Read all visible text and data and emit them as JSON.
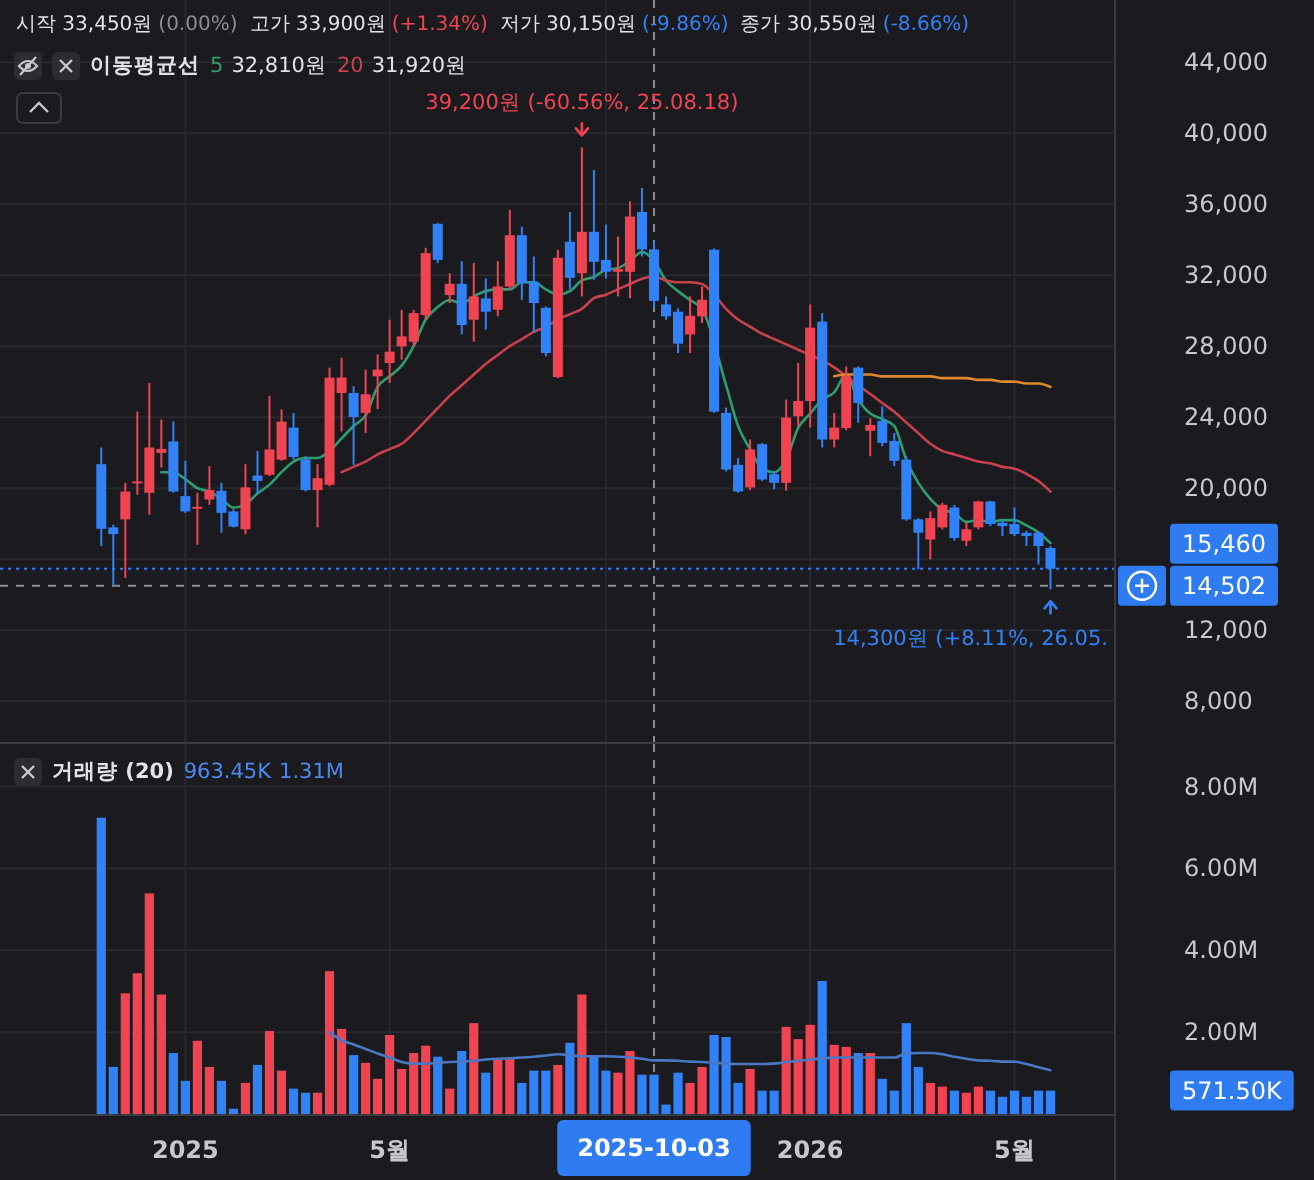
{
  "chart_data": [
    {
      "type": "candlestick",
      "x": [
        "2024-11-15",
        "2024-11-22",
        "2024-11-29",
        "2024-12-06",
        "2024-12-13",
        "2024-12-20",
        "2024-12-27",
        "2025-01-03",
        "2025-01-10",
        "2025-01-17",
        "2025-01-24",
        "2025-01-31",
        "2025-02-07",
        "2025-02-14",
        "2025-02-21",
        "2025-02-28",
        "2025-03-07",
        "2025-03-14",
        "2025-03-21",
        "2025-03-28",
        "2025-04-04",
        "2025-04-11",
        "2025-04-18",
        "2025-04-25",
        "2025-05-02",
        "2025-05-09",
        "2025-05-16",
        "2025-05-23",
        "2025-05-30",
        "2025-06-06",
        "2025-06-13",
        "2025-06-20",
        "2025-06-27",
        "2025-07-04",
        "2025-07-11",
        "2025-07-18",
        "2025-07-25",
        "2025-08-01",
        "2025-08-08",
        "2025-08-15",
        "2025-08-22",
        "2025-08-29",
        "2025-09-05",
        "2025-09-12",
        "2025-09-19",
        "2025-09-26",
        "2025-10-03",
        "2025-10-10",
        "2025-10-17",
        "2025-10-24",
        "2025-10-31",
        "2025-11-07",
        "2025-11-14",
        "2025-11-21",
        "2025-11-28",
        "2025-12-05",
        "2025-12-12",
        "2025-12-19",
        "2025-12-26",
        "2026-01-02",
        "2026-01-09",
        "2026-01-16",
        "2026-01-23",
        "2026-01-30",
        "2026-02-06",
        "2026-02-13",
        "2026-02-20",
        "2026-02-27",
        "2026-03-06",
        "2026-03-13",
        "2026-03-20",
        "2026-03-27",
        "2026-04-03",
        "2026-04-10",
        "2026-04-17",
        "2026-04-24",
        "2026-05-01",
        "2026-05-08",
        "2026-05-15",
        "2026-05-22"
      ],
      "ohlc": [
        [
          21350,
          22290,
          16740,
          17710
        ],
        [
          17790,
          17940,
          14560,
          17410
        ],
        [
          18240,
          20300,
          14940,
          19810
        ],
        [
          20300,
          24310,
          19630,
          20380
        ],
        [
          19740,
          25930,
          18500,
          22290
        ],
        [
          21990,
          23860,
          21160,
          22210
        ],
        [
          22630,
          23750,
          19740,
          19810
        ],
        [
          19550,
          21540,
          18610,
          18690
        ],
        [
          18880,
          19740,
          16810,
          18950
        ],
        [
          19360,
          21240,
          19060,
          19890
        ],
        [
          19850,
          20300,
          17490,
          18610
        ],
        [
          18690,
          18800,
          17790,
          17830
        ],
        [
          17680,
          21350,
          17410,
          20040
        ],
        [
          20710,
          22100,
          19660,
          20410
        ],
        [
          20750,
          25210,
          20680,
          22180
        ],
        [
          21610,
          24430,
          21540,
          23750
        ],
        [
          23410,
          24240,
          21610,
          21760
        ],
        [
          21610,
          21800,
          19810,
          19890
        ],
        [
          19890,
          21350,
          17790,
          20560
        ],
        [
          20190,
          26790,
          20110,
          26230
        ],
        [
          25360,
          27350,
          23190,
          26230
        ],
        [
          25360,
          25740,
          21310,
          24010
        ],
        [
          24240,
          26680,
          23110,
          25290
        ],
        [
          26300,
          27540,
          24460,
          26680
        ],
        [
          27050,
          29490,
          25930,
          27690
        ],
        [
          27990,
          30050,
          27240,
          28550
        ],
        [
          28250,
          30050,
          27990,
          29860
        ],
        [
          29750,
          33540,
          29490,
          33240
        ],
        [
          34890,
          34930,
          32680,
          32860
        ],
        [
          30880,
          32110,
          30430,
          31510
        ],
        [
          31510,
          32790,
          28660,
          29190
        ],
        [
          29490,
          32680,
          28250,
          30800
        ],
        [
          30690,
          31810,
          28930,
          29940
        ],
        [
          30050,
          32790,
          29680,
          31360
        ],
        [
          31360,
          35680,
          31180,
          34250
        ],
        [
          34250,
          34740,
          30610,
          31550
        ],
        [
          31630,
          33050,
          28740,
          30430
        ],
        [
          30160,
          30240,
          27430,
          27610
        ],
        [
          26260,
          33430,
          26190,
          32980
        ],
        [
          33880,
          35560,
          31180,
          31850
        ],
        [
          32110,
          39200,
          30800,
          34440
        ],
        [
          34440,
          37930,
          31740,
          32750
        ],
        [
          32860,
          34850,
          31810,
          32190
        ],
        [
          32190,
          34180,
          30800,
          32340
        ],
        [
          32190,
          36160,
          30690,
          35300
        ],
        [
          35560,
          36910,
          33050,
          33450
        ],
        [
          33450,
          33900,
          30150,
          30550
        ],
        [
          30350,
          30800,
          29490,
          29680
        ],
        [
          29940,
          30130,
          27610,
          28140
        ],
        [
          28660,
          30800,
          27610,
          29710
        ],
        [
          29680,
          31360,
          29300,
          30610
        ],
        [
          33430,
          33500,
          24240,
          24310
        ],
        [
          24240,
          24540,
          20940,
          21050
        ],
        [
          21310,
          21690,
          19740,
          19810
        ],
        [
          20040,
          22740,
          19890,
          22180
        ],
        [
          22480,
          22550,
          20410,
          20490
        ],
        [
          20790,
          20940,
          19930,
          20300
        ],
        [
          20300,
          24990,
          19850,
          23980
        ],
        [
          24050,
          27050,
          23490,
          24910
        ],
        [
          24910,
          30350,
          23410,
          29040
        ],
        [
          29380,
          29860,
          22290,
          22740
        ],
        [
          22740,
          24240,
          22290,
          23410
        ],
        [
          23380,
          26860,
          23260,
          26300
        ],
        [
          26790,
          26860,
          23680,
          24800
        ],
        [
          23230,
          23940,
          21800,
          23560
        ],
        [
          23790,
          24610,
          22360,
          22550
        ],
        [
          22660,
          23110,
          21240,
          21540
        ],
        [
          21610,
          21800,
          18160,
          18240
        ],
        [
          18240,
          18310,
          15430,
          17490
        ],
        [
          17110,
          18690,
          15990,
          18310
        ],
        [
          17790,
          19180,
          17680,
          19060
        ],
        [
          18910,
          19060,
          17040,
          17190
        ],
        [
          17040,
          18050,
          16740,
          17680
        ],
        [
          17790,
          19290,
          17680,
          19250
        ],
        [
          19250,
          19290,
          17860,
          17980
        ],
        [
          18050,
          18240,
          17300,
          17860
        ],
        [
          17980,
          18910,
          17300,
          17410
        ],
        [
          17490,
          17600,
          16740,
          17300
        ],
        [
          17490,
          17560,
          15690,
          16740
        ],
        [
          16630,
          16740,
          14300,
          15460
        ]
      ],
      "colors": [
        "#3182f6",
        "#3182f6",
        "#f04452",
        "#f04452",
        "#f04452",
        "#f04452",
        "#3182f6",
        "#3182f6",
        "#f04452",
        "#f04452",
        "#3182f6",
        "#3182f6",
        "#f04452",
        "#3182f6",
        "#f04452",
        "#f04452",
        "#3182f6",
        "#3182f6",
        "#f04452",
        "#f04452",
        "#f04452",
        "#3182f6",
        "#f04452",
        "#f04452",
        "#f04452",
        "#f04452",
        "#f04452",
        "#f04452",
        "#3182f6",
        "#f04452",
        "#3182f6",
        "#f04452",
        "#3182f6",
        "#f04452",
        "#f04452",
        "#3182f6",
        "#3182f6",
        "#3182f6",
        "#f04452",
        "#3182f6",
        "#f04452",
        "#3182f6",
        "#3182f6",
        "#f04452",
        "#f04452",
        "#3182f6",
        "#3182f6",
        "#3182f6",
        "#3182f6",
        "#f04452",
        "#f04452",
        "#3182f6",
        "#3182f6",
        "#3182f6",
        "#f04452",
        "#3182f6",
        "#3182f6",
        "#f04452",
        "#f04452",
        "#f04452",
        "#3182f6",
        "#f04452",
        "#f04452",
        "#3182f6",
        "#f04452",
        "#3182f6",
        "#3182f6",
        "#3182f6",
        "#3182f6",
        "#f04452",
        "#f04452",
        "#3182f6",
        "#f04452",
        "#f04452",
        "#3182f6",
        "#3182f6",
        "#3182f6",
        "#3182f6",
        "#3182f6",
        "#3182f6"
      ],
      "series": [
        {
          "name": "5",
          "type": "line",
          "color": "#2f9e6e",
          "values": [
            null,
            null,
            null,
            null,
            null,
            20900,
            20900,
            20500,
            20000,
            19800,
            19400,
            18900,
            19100,
            19700,
            20200,
            20900,
            21500,
            21700,
            21700,
            22100,
            22800,
            23500,
            24100,
            25700,
            26300,
            26900,
            28000,
            29500,
            30200,
            30600,
            30400,
            30800,
            31100,
            31200,
            31200,
            31600,
            31600,
            31200,
            30900,
            31100,
            31700,
            31900,
            32300,
            32400,
            32800,
            33300,
            32810,
            31700,
            31100,
            30600,
            30100,
            null,
            25800,
            23500,
            22200,
            21100,
            20900,
            21600,
            23400,
            24200,
            25000,
            25400,
            26400,
            25000,
            24200,
            23900,
            23500,
            21600,
            20300,
            19400,
            18800,
            18600,
            18100,
            18200,
            18100,
            18200,
            18200,
            17900,
            17500,
            16900
          ]
        },
        {
          "name": "20",
          "type": "line",
          "color": "#c8424e",
          "values": [
            null,
            null,
            null,
            null,
            null,
            null,
            null,
            null,
            null,
            null,
            null,
            null,
            null,
            null,
            null,
            null,
            null,
            null,
            null,
            null,
            20900,
            21200,
            21500,
            21900,
            22200,
            22500,
            23100,
            23800,
            24500,
            25200,
            25800,
            26400,
            27000,
            27500,
            28000,
            28400,
            28800,
            29100,
            29500,
            29800,
            30100,
            30700,
            30900,
            31200,
            31500,
            31800,
            31920,
            31700,
            31600,
            31600,
            31500,
            30900,
            30100,
            29500,
            29100,
            28700,
            28400,
            28100,
            27800,
            27500,
            27200,
            26800,
            26300,
            25800,
            25300,
            24800,
            24300,
            23700,
            23100,
            22500,
            22100,
            21900,
            21700,
            21500,
            21400,
            21200,
            21100,
            20800,
            20400,
            19800
          ]
        },
        {
          "type": "line",
          "color": "#e0892c",
          "values": [
            null,
            null,
            null,
            null,
            null,
            null,
            null,
            null,
            null,
            null,
            null,
            null,
            null,
            null,
            null,
            null,
            null,
            null,
            null,
            null,
            null,
            null,
            null,
            null,
            null,
            null,
            null,
            null,
            null,
            null,
            null,
            null,
            null,
            null,
            null,
            null,
            null,
            null,
            null,
            null,
            null,
            null,
            null,
            null,
            null,
            null,
            null,
            null,
            null,
            null,
            null,
            null,
            null,
            null,
            null,
            null,
            null,
            null,
            null,
            null,
            null,
            26300,
            26400,
            26400,
            26400,
            26300,
            26300,
            26300,
            26300,
            26300,
            26200,
            26200,
            26200,
            26100,
            26100,
            26000,
            26000,
            25900,
            25900,
            25700
          ]
        }
      ],
      "xlim": [
        "2024-09-17",
        "2026-06-28"
      ],
      "ylim": [
        5700,
        47500
      ],
      "xticks": [
        {
          "value": "2025-01-03",
          "label": null
        },
        {
          "value": "2025-05-02",
          "label": null
        },
        {
          "value": "2025-09-05",
          "label": null
        },
        {
          "value": "2026-01-02",
          "label": null
        },
        {
          "value": "2026-05-01",
          "label": null
        }
      ],
      "yticks": [
        {
          "value": 8000,
          "label": "8,000"
        },
        {
          "value": 12000,
          "label": "12,000"
        },
        {
          "value": 16000,
          "label": null
        },
        {
          "value": 20000,
          "label": "20,000"
        },
        {
          "value": 24000,
          "label": "24,000"
        },
        {
          "value": 28000,
          "label": "28,000"
        },
        {
          "value": 32000,
          "label": "32,000"
        },
        {
          "value": 36000,
          "label": "36,000"
        },
        {
          "value": 40000,
          "label": "40,000"
        },
        {
          "value": 44000,
          "label": "44,000"
        }
      ],
      "grid": true,
      "legend": "top left",
      "legend_title": "이동평균선",
      "tick_labels": "y",
      "annotations": [
        "시작 33,450원",
        "(0.00%)",
        "고가 33,900원",
        "(+1.34%)",
        "저가 30,150원",
        "(-9.86%)",
        "종가 30,550원",
        "(-8.66%)",
        "32,810원",
        "31,920원",
        "15,460",
        "14,502",
        {
          "text": "39,200원 (-60.56%, 25.08.18)",
          "x": "2025-08-22",
          "y": 39200
        },
        {
          "text": "14,300원 (+8.11%, 26.05.",
          "x": "2026-05-22",
          "y": 14300
        }
      ],
      "ref_lines": [
        {
          "axis": "x",
          "value": "2025-10-03",
          "line_style": "dashed"
        },
        {
          "axis": "y",
          "value": 15460,
          "line_style": "dotted",
          "color": "#3182f6"
        },
        {
          "axis": "y",
          "value": 14502,
          "line_style": "dashed"
        }
      ]
    },
    {
      "type": "bar",
      "x": [
        "2024-11-15",
        "2024-11-22",
        "2024-11-29",
        "2024-12-06",
        "2024-12-13",
        "2024-12-20",
        "2024-12-27",
        "2025-01-03",
        "2025-01-10",
        "2025-01-17",
        "2025-01-24",
        "2025-01-31",
        "2025-02-07",
        "2025-02-14",
        "2025-02-21",
        "2025-02-28",
        "2025-03-07",
        "2025-03-14",
        "2025-03-21",
        "2025-03-28",
        "2025-04-04",
        "2025-04-11",
        "2025-04-18",
        "2025-04-25",
        "2025-05-02",
        "2025-05-09",
        "2025-05-16",
        "2025-05-23",
        "2025-05-30",
        "2025-06-06",
        "2025-06-13",
        "2025-06-20",
        "2025-06-27",
        "2025-07-04",
        "2025-07-11",
        "2025-07-18",
        "2025-07-25",
        "2025-08-01",
        "2025-08-08",
        "2025-08-15",
        "2025-08-22",
        "2025-08-29",
        "2025-09-05",
        "2025-09-12",
        "2025-09-19",
        "2025-09-26",
        "2025-10-03",
        "2025-10-10",
        "2025-10-17",
        "2025-10-24",
        "2025-10-31",
        "2025-11-07",
        "2025-11-14",
        "2025-11-21",
        "2025-11-28",
        "2025-12-05",
        "2025-12-12",
        "2025-12-19",
        "2025-12-26",
        "2026-01-02",
        "2026-01-09",
        "2026-01-16",
        "2026-01-23",
        "2026-01-30",
        "2026-02-06",
        "2026-02-13",
        "2026-02-20",
        "2026-02-27",
        "2026-03-06",
        "2026-03-13",
        "2026-03-20",
        "2026-03-27",
        "2026-04-03",
        "2026-04-10",
        "2026-04-17",
        "2026-04-24",
        "2026-05-01",
        "2026-05-08",
        "2026-05-15",
        "2026-05-22"
      ],
      "series": [
        {
          "colors": [
            "#3182f6",
            "#3182f6",
            "#f04452",
            "#f04452",
            "#f04452",
            "#f04452",
            "#3182f6",
            "#3182f6",
            "#f04452",
            "#f04452",
            "#3182f6",
            "#3182f6",
            "#f04452",
            "#3182f6",
            "#f04452",
            "#f04452",
            "#3182f6",
            "#3182f6",
            "#f04452",
            "#f04452",
            "#f04452",
            "#3182f6",
            "#f04452",
            "#f04452",
            "#f04452",
            "#f04452",
            "#f04452",
            "#f04452",
            "#3182f6",
            "#f04452",
            "#3182f6",
            "#f04452",
            "#3182f6",
            "#f04452",
            "#f04452",
            "#3182f6",
            "#3182f6",
            "#3182f6",
            "#f04452",
            "#3182f6",
            "#f04452",
            "#3182f6",
            "#3182f6",
            "#f04452",
            "#f04452",
            "#3182f6",
            "#3182f6",
            "#3182f6",
            "#3182f6",
            "#f04452",
            "#f04452",
            "#3182f6",
            "#3182f6",
            "#3182f6",
            "#f04452",
            "#3182f6",
            "#3182f6",
            "#f04452",
            "#f04452",
            "#f04452",
            "#3182f6",
            "#f04452",
            "#f04452",
            "#3182f6",
            "#f04452",
            "#3182f6",
            "#3182f6",
            "#3182f6",
            "#3182f6",
            "#f04452",
            "#f04452",
            "#3182f6",
            "#f04452",
            "#f04452",
            "#3182f6",
            "#3182f6",
            "#3182f6",
            "#3182f6",
            "#3182f6",
            "#3182f6"
          ],
          "values": [
            7240000,
            1150000,
            2950000,
            3440000,
            5390000,
            2920000,
            1490000,
            810000,
            1790000,
            1150000,
            810000,
            130000,
            760000,
            1200000,
            2030000,
            1060000,
            620000,
            520000,
            520000,
            3490000,
            2080000,
            1440000,
            1250000,
            860000,
            1930000,
            1100000,
            1490000,
            1670000,
            1400000,
            620000,
            1540000,
            2220000,
            1010000,
            1350000,
            1350000,
            760000,
            1060000,
            1060000,
            1200000,
            1740000,
            2920000,
            1440000,
            1060000,
            1010000,
            1540000,
            960000,
            963450,
            230000,
            1010000,
            760000,
            1150000,
            1930000,
            1880000,
            760000,
            1100000,
            570000,
            570000,
            2130000,
            1830000,
            2180000,
            3250000,
            1690000,
            1640000,
            1490000,
            1490000,
            860000,
            570000,
            2220000,
            1150000,
            760000,
            670000,
            570000,
            520000,
            670000,
            570000,
            420000,
            570000,
            420000,
            570000,
            571500
          ]
        },
        {
          "type": "line",
          "color": "#4a78c4",
          "values": [
            null,
            null,
            null,
            null,
            null,
            null,
            null,
            null,
            null,
            null,
            null,
            null,
            null,
            null,
            null,
            null,
            null,
            null,
            null,
            2000000,
            1800000,
            1700000,
            1590000,
            1480000,
            1380000,
            1270000,
            1230000,
            1230000,
            1250000,
            1270000,
            1280000,
            1300000,
            1330000,
            1350000,
            1360000,
            1380000,
            1400000,
            1430000,
            1460000,
            1440000,
            1410000,
            1410000,
            1410000,
            1400000,
            1380000,
            1350000,
            1310000,
            1310000,
            1300000,
            1280000,
            1270000,
            1250000,
            1230000,
            1220000,
            1220000,
            1220000,
            1230000,
            1270000,
            1300000,
            1330000,
            1360000,
            1380000,
            1380000,
            1380000,
            1380000,
            1380000,
            1380000,
            1480000,
            1490000,
            1490000,
            1460000,
            1400000,
            1350000,
            1310000,
            1300000,
            1280000,
            1280000,
            1220000,
            1140000,
            1070000
          ]
        }
      ],
      "xlim": [
        "2024-09-17",
        "2026-06-28"
      ],
      "ylim": [
        0,
        9040000
      ],
      "xticks": [
        {
          "value": "2025-01-03",
          "label": "2025"
        },
        {
          "value": "2025-05-02",
          "label": "5월"
        },
        {
          "value": "2025-09-05",
          "label": null
        },
        {
          "value": "2026-01-02",
          "label": "2026"
        },
        {
          "value": "2026-05-01",
          "label": "5월"
        }
      ],
      "yticks": [
        {
          "value": 2000000,
          "label": "2.00M"
        },
        {
          "value": 4000000,
          "label": "4.00M"
        },
        {
          "value": 6000000,
          "label": "6.00M"
        },
        {
          "value": 8000000,
          "label": "8.00M"
        }
      ],
      "grid": true,
      "legend_title": "거래량 (20)",
      "annotations": [
        "963.45K",
        "1.31M",
        "571.50K"
      ],
      "ref_lines": [
        {
          "axis": "x",
          "value": "2025-10-03",
          "label": "2025-10-03",
          "line_style": "dashed"
        }
      ]
    }
  ]
}
